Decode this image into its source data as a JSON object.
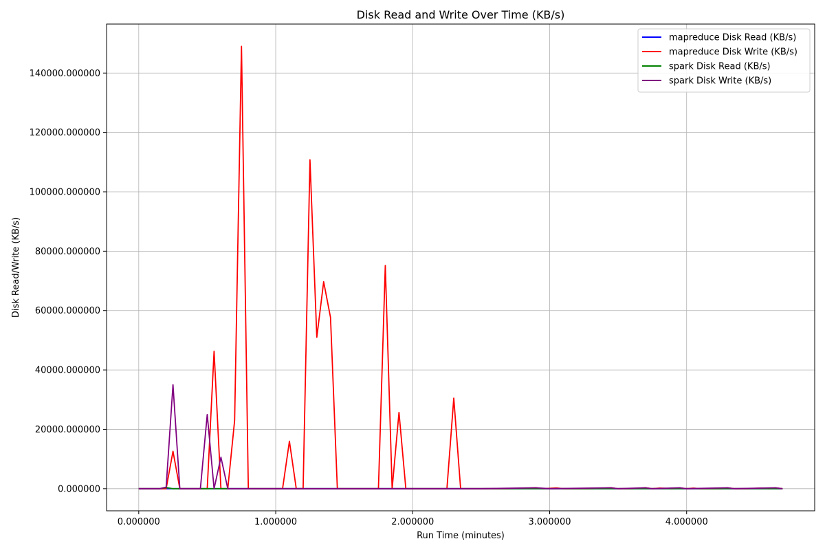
{
  "chart_data": {
    "type": "line",
    "title": "Disk Read and Write Over Time (KB/s)",
    "xlabel": "Run Time (minutes)",
    "ylabel": "Disk Read/Write (KB/s)",
    "xlim": [
      -0.235,
      4.935
    ],
    "ylim": [
      -7450,
      156500
    ],
    "x_ticks": [
      0,
      1,
      2,
      3,
      4
    ],
    "x_tick_labels": [
      "0.000000",
      "1.000000",
      "2.000000",
      "3.000000",
      "4.000000"
    ],
    "y_ticks": [
      0,
      20000,
      40000,
      60000,
      80000,
      100000,
      120000,
      140000
    ],
    "y_tick_labels": [
      "0.000000",
      "20000.000000",
      "40000.000000",
      "60000.000000",
      "80000.000000",
      "100000.000000",
      "120000.000000",
      "140000.000000"
    ],
    "grid": true,
    "legend_position": "top-right",
    "series": [
      {
        "name": "mapreduce Disk Read (KB/s)",
        "color": "#0000ff",
        "x": [
          0,
          0.25,
          0.5,
          0.75,
          1.0,
          1.25,
          1.5,
          1.75,
          2.0,
          2.25,
          2.5,
          2.75,
          3.0,
          3.25,
          3.5,
          3.75,
          4.0,
          4.25,
          4.5,
          4.7
        ],
        "y": [
          0,
          0,
          0,
          0,
          0,
          0,
          0,
          0,
          0,
          0,
          0,
          0,
          0,
          0,
          0,
          0,
          0,
          0,
          0,
          0
        ]
      },
      {
        "name": "mapreduce Disk Write (KB/s)",
        "color": "#ff0000",
        "x": [
          0,
          0.15,
          0.2,
          0.25,
          0.3,
          0.45,
          0.5,
          0.55,
          0.6,
          0.65,
          0.7,
          0.75,
          0.8,
          0.9,
          1.0,
          1.05,
          1.1,
          1.15,
          1.2,
          1.25,
          1.3,
          1.35,
          1.4,
          1.45,
          1.5,
          1.75,
          1.8,
          1.85,
          1.9,
          1.95,
          2.05,
          2.1,
          2.25,
          2.3,
          2.35,
          2.55,
          2.7,
          2.9,
          2.95,
          3.05,
          3.1,
          3.3,
          3.45,
          3.5,
          3.6,
          3.7,
          3.75,
          3.8,
          3.9,
          3.95,
          4.0,
          4.05,
          4.1,
          4.2,
          4.25,
          4.3,
          4.35,
          4.45,
          4.55,
          4.6,
          4.65,
          4.7
        ],
        "y": [
          0,
          0,
          0,
          12600,
          0,
          0,
          0,
          46300,
          0,
          0,
          23000,
          149000,
          0,
          0,
          0,
          0,
          16000,
          0,
          0,
          110800,
          51000,
          69700,
          57700,
          0,
          0,
          0,
          75200,
          0,
          25700,
          0,
          0,
          0,
          0,
          30500,
          0,
          0,
          0,
          300,
          0,
          250,
          0,
          0,
          300,
          0,
          0,
          300,
          0,
          200,
          0,
          250,
          0,
          200,
          0,
          0,
          0,
          250,
          0,
          0,
          200,
          0,
          250,
          0
        ]
      },
      {
        "name": "spark Disk Read (KB/s)",
        "color": "#008000",
        "x": [
          0,
          0.15,
          0.2,
          0.25,
          0.3,
          0.5,
          0.6,
          0.75,
          1.0,
          1.5,
          2.0,
          2.5,
          3.0,
          3.5,
          4.0,
          4.7
        ],
        "y": [
          0,
          0,
          400,
          0,
          0,
          0,
          0,
          0,
          0,
          0,
          0,
          0,
          0,
          0,
          0,
          0
        ]
      },
      {
        "name": "spark Disk Write (KB/s)",
        "color": "#800080",
        "x": [
          0,
          0.15,
          0.2,
          0.25,
          0.3,
          0.45,
          0.5,
          0.55,
          0.6,
          0.65,
          0.8,
          1.0,
          1.5,
          2.0,
          2.5,
          2.9,
          3.0,
          3.45,
          3.5,
          3.7,
          3.75,
          3.95,
          4.0,
          4.3,
          4.35,
          4.65,
          4.7
        ],
        "y": [
          0,
          0,
          500,
          35000,
          0,
          0,
          25000,
          0,
          10600,
          0,
          0,
          0,
          0,
          0,
          0,
          300,
          0,
          300,
          0,
          300,
          0,
          300,
          0,
          300,
          0,
          300,
          0
        ]
      }
    ]
  }
}
